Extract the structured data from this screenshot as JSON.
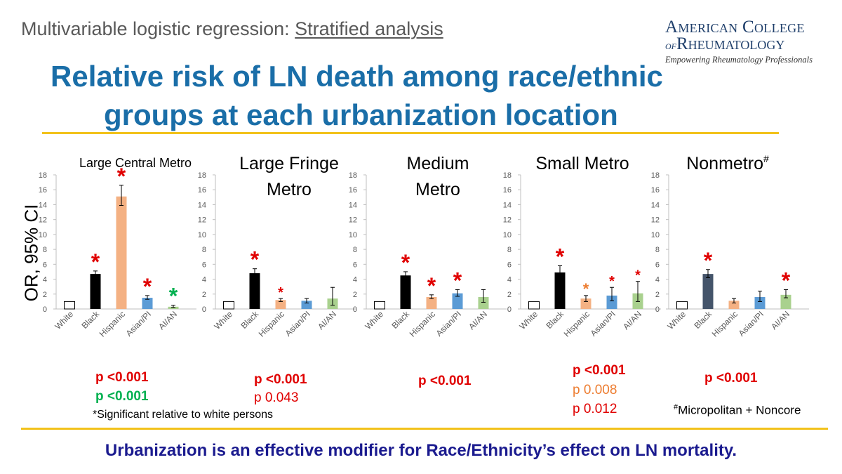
{
  "header": {
    "subtitle_prefix": "Multivariable logistic regression: ",
    "subtitle_link": "Stratified analysis",
    "title_line1": "Relative risk of LN death among race/ethnic",
    "title_line2": "groups at each urbanization location"
  },
  "logo": {
    "line1": "American College",
    "line2_prefix": "of",
    "line2_main": "Rheumatology",
    "tagline": "Empowering Rheumatology Professionals"
  },
  "y_axis_label": "OR, 95% CI",
  "colors": {
    "white": "#ffffff",
    "black": "#000000",
    "hispanic": "#f4b183",
    "asian_pi": "#5b9bd5",
    "ai_an": "#a9d18e",
    "black_nonmetro": "#44546a",
    "sig_red": "#e00000",
    "sig_green": "#00b050",
    "sig_orange": "#ed7d31",
    "title_blue": "#1a6ea8",
    "conclusion_navy": "#1b1b8f",
    "rule_gold": "#f2c21b"
  },
  "chart_data": [
    {
      "type": "bar",
      "title": "Large Central Metro",
      "categories": [
        "White",
        "Black",
        "Hispanic",
        "Asian/PI",
        "AI/AN"
      ],
      "values": [
        1.0,
        4.7,
        15.1,
        1.5,
        0.3
      ],
      "ci_low": [
        1.0,
        4.3,
        13.9,
        1.3,
        0.2
      ],
      "ci_high": [
        1.0,
        5.1,
        16.6,
        1.8,
        0.5
      ],
      "significant": [
        "",
        "red",
        "red",
        "red",
        "green"
      ],
      "ylim": [
        0,
        18
      ],
      "yticks": [
        "0",
        "2",
        "4",
        "6",
        "8",
        "10",
        "12",
        "14",
        "16",
        "18"
      ],
      "xlabel": "",
      "ylabel": "OR, 95% CI"
    },
    {
      "type": "bar",
      "title": "Large Fringe Metro",
      "title_lines": [
        "Large Fringe",
        "Metro"
      ],
      "categories": [
        "White",
        "Black",
        "Hispanic",
        "Asian/PI",
        "AI/AN"
      ],
      "values": [
        1.0,
        4.8,
        1.2,
        1.1,
        1.4
      ],
      "ci_low": [
        1.0,
        4.3,
        1.0,
        0.8,
        0.5
      ],
      "ci_high": [
        1.0,
        5.4,
        1.4,
        1.4,
        2.9
      ],
      "significant": [
        "",
        "red",
        "red-small",
        "",
        ""
      ],
      "ylim": [
        0,
        18
      ],
      "yticks": [
        "0",
        "2",
        "4",
        "6",
        "8",
        "10",
        "12",
        "14",
        "16",
        "18"
      ]
    },
    {
      "type": "bar",
      "title": "Medium Metro",
      "title_lines": [
        "Medium",
        "Metro"
      ],
      "categories": [
        "White",
        "Black",
        "Hispanic",
        "Asian/PI",
        "AI/AN"
      ],
      "values": [
        1.0,
        4.5,
        1.6,
        2.1,
        1.6
      ],
      "ci_low": [
        1.0,
        4.0,
        1.4,
        1.7,
        0.9
      ],
      "ci_high": [
        1.0,
        5.0,
        1.9,
        2.6,
        2.6
      ],
      "significant": [
        "",
        "red",
        "red",
        "red",
        ""
      ],
      "ylim": [
        0,
        18
      ],
      "yticks": [
        "0",
        "2",
        "4",
        "6",
        "8",
        "10",
        "12",
        "14",
        "16",
        "18"
      ]
    },
    {
      "type": "bar",
      "title": "Small Metro",
      "categories": [
        "White",
        "Black",
        "Hispanic",
        "Asian/PI",
        "AI/AN"
      ],
      "values": [
        1.0,
        4.9,
        1.4,
        1.8,
        2.1
      ],
      "ci_low": [
        1.0,
        4.1,
        1.0,
        1.1,
        1.0
      ],
      "ci_high": [
        1.0,
        5.8,
        1.8,
        2.9,
        3.7
      ],
      "significant": [
        "",
        "red",
        "orange",
        "red-small",
        "red-small"
      ],
      "ylim": [
        0,
        18
      ],
      "yticks": [
        "0",
        "2",
        "4",
        "6",
        "8",
        "10",
        "12",
        "14",
        "16",
        "18"
      ]
    },
    {
      "type": "bar",
      "title": "Nonmetro",
      "title_sup": "#",
      "categories": [
        "White",
        "Black",
        "Hispanic",
        "Asian/PI",
        "AI/AN"
      ],
      "values": [
        1.0,
        4.7,
        1.1,
        1.6,
        1.9
      ],
      "ci_low": [
        1.0,
        4.2,
        0.8,
        1.0,
        1.5
      ],
      "ci_high": [
        1.0,
        5.3,
        1.4,
        2.4,
        2.6
      ],
      "significant": [
        "",
        "red",
        "",
        "",
        "red"
      ],
      "black_bar_color": "#44546a",
      "ylim": [
        0,
        18
      ],
      "yticks": [
        "0",
        "2",
        "4",
        "6",
        "8",
        "10",
        "12",
        "14",
        "16",
        "18"
      ]
    }
  ],
  "pvalues": {
    "large_central": {
      "red": "p <0.001",
      "green": "p <0.001"
    },
    "large_fringe": {
      "red": "p <0.001",
      "normal": "p 0.043"
    },
    "medium": {
      "red": "p <0.001"
    },
    "small": {
      "red": "p <0.001",
      "orange": "p 0.008",
      "normal": "p 0.012"
    },
    "nonmetro": {
      "red": "p <0.001"
    }
  },
  "footnotes": {
    "significance": "*Significant relative to white persons",
    "nonmetro_prefix": "#",
    "nonmetro": "Micropolitan + Noncore"
  },
  "conclusion": "Urbanization is an effective modifier for Race/Ethnicity’s effect on LN mortality."
}
